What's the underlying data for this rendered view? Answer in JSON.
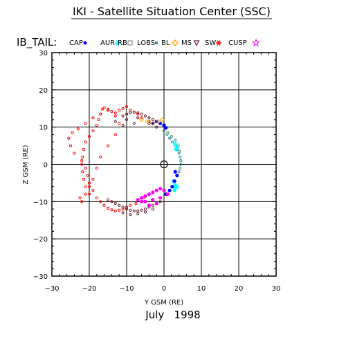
{
  "chart_data": {
    "type": "scatter",
    "title": "IKI - Satellite Situation Center (SSC)",
    "subtitle": "July   1998",
    "xlabel": "Y GSM (RE)",
    "ylabel": "Z GSM (RE)",
    "xlim": [
      -30,
      30
    ],
    "ylim": [
      -30,
      30
    ],
    "x_ticks": [
      -30,
      -20,
      -10,
      0,
      10,
      20,
      30
    ],
    "y_ticks": [
      -30,
      -20,
      -10,
      0,
      10,
      20,
      30
    ],
    "x_tick_labels": [
      "-30",
      "-20",
      "-10",
      "0",
      "10",
      "20",
      "30"
    ],
    "y_tick_labels": [
      "-30",
      "-20",
      "-10",
      "0",
      "10",
      "20",
      "30"
    ],
    "grid": true,
    "legend_title": "IB_TAIL:",
    "legend_position": "top",
    "legend": [
      {
        "label": "CAP",
        "marker": "dot",
        "color": "#0000ff"
      },
      {
        "label": "AUR",
        "marker": "asterisk",
        "color": "#00ffff"
      },
      {
        "label": "RB",
        "marker": "square",
        "color": "#777777"
      },
      {
        "label": "LOBS",
        "marker": "square-small",
        "color": "#2e8b8b"
      },
      {
        "label": "BL",
        "marker": "diamond",
        "color": "#ffa500"
      },
      {
        "label": "MS",
        "marker": "triangle-down",
        "color": "#6b1b2b"
      },
      {
        "label": "SW",
        "marker": "asterisk",
        "color": "#ff0000"
      },
      {
        "label": "CUSP",
        "marker": "star",
        "color": "#ff00ff"
      }
    ],
    "earth_marker": {
      "x": 0,
      "y": 0
    },
    "series": [
      {
        "name": "SW",
        "color": "#ff0000",
        "x": [
          -20,
          -21,
          -21.5,
          -21.8,
          -22,
          -21.8,
          -21.5,
          -21,
          -20,
          -19,
          -18,
          -17.5,
          -17,
          -16.5,
          -16,
          -15,
          -14,
          -13,
          -12,
          -11,
          -10,
          -9,
          -8,
          -7,
          -6,
          -5.5,
          -7.5,
          -9,
          -10,
          -11,
          -12,
          -13,
          -14,
          -15,
          -16,
          -17,
          -18,
          -19,
          -20,
          -20.5,
          -21,
          -22,
          -24,
          -25,
          -25.5,
          -24.5,
          -23,
          -21,
          -19,
          -17,
          -15,
          -13,
          -12,
          -13,
          -15,
          -17,
          -18,
          -19,
          -20,
          -21,
          -22,
          -22.5
        ],
        "y": [
          -8,
          -6,
          -4,
          -2,
          0,
          2,
          4,
          6,
          7.5,
          9,
          10.5,
          12,
          13.5,
          14.8,
          15.2,
          14.8,
          14.2,
          13.8,
          14.5,
          15,
          15.5,
          14.5,
          14,
          13.5,
          12.5,
          -9,
          -10.5,
          -11,
          -11.5,
          -12,
          -12.3,
          -12.5,
          -12.2,
          -11.8,
          -11,
          -10,
          -9,
          -7,
          -5,
          -3,
          -1,
          1,
          3,
          5,
          7,
          8.5,
          9.5,
          11,
          12.5,
          13.5,
          14.5,
          13,
          11,
          8,
          5,
          2,
          -1,
          -4,
          -6,
          -8,
          -10,
          -9
        ]
      },
      {
        "name": "MS",
        "color": "#6b1b2b",
        "x": [
          -11,
          -10,
          -9,
          -8,
          -7,
          -6,
          -5,
          -4,
          -3,
          -2,
          -1,
          0,
          -1,
          -2,
          -3,
          -4,
          -5,
          -6,
          -7,
          -8,
          -9,
          -10,
          -11,
          -12,
          -13,
          -14,
          -15,
          -13,
          -10,
          -7,
          -4,
          -2,
          -11,
          -9,
          -7,
          -5,
          -3,
          -11,
          -8,
          -4
        ],
        "y": [
          13,
          13.5,
          13.8,
          14,
          13.8,
          13.5,
          13,
          12.5,
          12,
          11.5,
          11,
          10.5,
          -10,
          -10.5,
          -11,
          -11.5,
          -12,
          -12.3,
          -12.5,
          -12.5,
          -12.3,
          -12,
          -11.5,
          -11,
          -10.5,
          -10,
          -9.5,
          11.5,
          12,
          12.5,
          11.5,
          10,
          -13,
          -13.5,
          -13.3,
          -12.8,
          -12,
          10.5,
          11,
          11
        ]
      },
      {
        "name": "LOBS",
        "color": "#2e8b8b",
        "x": [
          0,
          0.8,
          1.5,
          2.2,
          3,
          3.5,
          4,
          4.3,
          4.5,
          4.5,
          4.3,
          4,
          1,
          2,
          3,
          3.8,
          4.2
        ],
        "y": [
          9,
          8,
          7,
          6,
          5,
          4,
          3,
          2,
          1,
          0,
          -1,
          -2,
          8.5,
          7.5,
          6.5,
          5,
          3.5
        ]
      },
      {
        "name": "AUR",
        "color": "#00ffff",
        "x": [
          3,
          3.5,
          3.2,
          2.5,
          3,
          3.5,
          3,
          2.8
        ],
        "y": [
          5.5,
          4.5,
          4,
          -4.5,
          -5.5,
          -6,
          -6.5,
          -7
        ]
      },
      {
        "name": "CAP",
        "color": "#0000ff",
        "x": [
          -3,
          -2,
          -1,
          0,
          0.5,
          3,
          3.5,
          2.8,
          2.2,
          1.5,
          0.5
        ],
        "y": [
          11,
          11.5,
          11,
          10.5,
          9.8,
          -2,
          -3,
          -4.5,
          -6,
          -7,
          -8
        ]
      },
      {
        "name": "CUSP",
        "color": "#ff00ff",
        "x": [
          -6,
          -5,
          -4,
          -3,
          -2,
          -1,
          0,
          1,
          -5,
          -3,
          -1,
          -4,
          -2,
          -6,
          -7
        ],
        "y": [
          -9,
          -8.5,
          -8,
          -7.5,
          -7,
          -6.5,
          -7,
          -8,
          -10,
          -9.5,
          -9,
          -11,
          -10.5,
          -10,
          -9.5
        ]
      },
      {
        "name": "BL",
        "color": "#ffa500",
        "x": [
          -6,
          -4.5,
          -3,
          -1.5,
          -0.5
        ],
        "y": [
          12,
          11.5,
          11,
          11.5,
          12
        ]
      }
    ]
  }
}
